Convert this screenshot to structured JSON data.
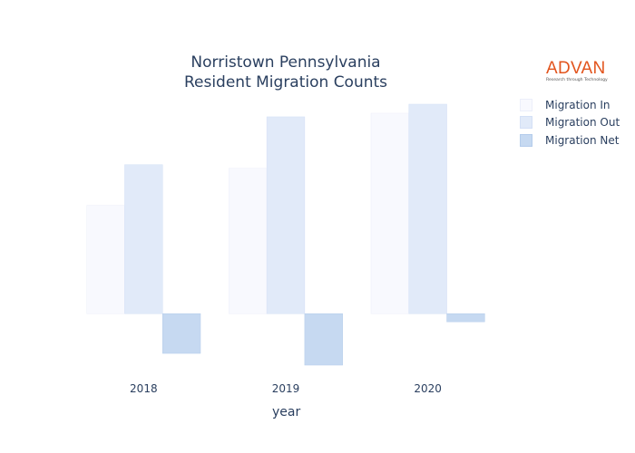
{
  "chart_data": {
    "type": "bar",
    "title": [
      "Norristown Pennsylvania",
      "Resident Migration Counts"
    ],
    "xlabel": "year",
    "ylabel": "",
    "categories": [
      "2018",
      "2019",
      "2020"
    ],
    "series": [
      {
        "name": "Migration In",
        "values": [
          120,
          161,
          222
        ],
        "color": "#f8f9fe",
        "stroke": "#eceffa"
      },
      {
        "name": "Migration Out",
        "values": [
          165,
          218,
          232
        ],
        "color": "#e1eaf9",
        "stroke": "#d4e0f6"
      },
      {
        "name": "Migration Net",
        "values": [
          -44,
          -57,
          -9
        ],
        "color": "#c6d9f1",
        "stroke": "#b4cceb"
      }
    ],
    "ylim": [
      -60,
      235
    ],
    "grid": false,
    "legend_position": "right"
  },
  "logo": {
    "word": "ADVAN",
    "tagline": "Research through Technology",
    "color": "#e2541d"
  }
}
